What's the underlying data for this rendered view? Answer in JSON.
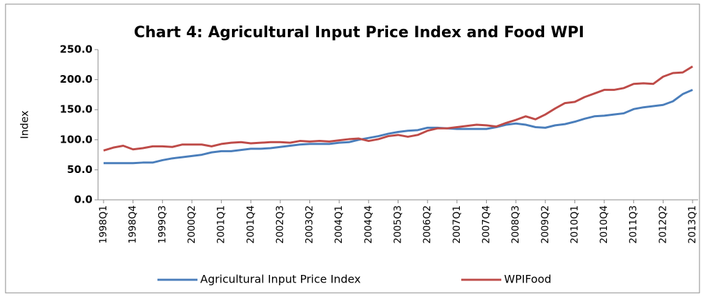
{
  "chart_data": {
    "type": "line",
    "title": "Chart 4: Agricultural Input Price Index and Food WPI",
    "y_label": "Index",
    "categories": [
      "1998Q1",
      null,
      null,
      "1998Q4",
      null,
      null,
      "1999Q3",
      null,
      null,
      "2000Q2",
      null,
      null,
      "2001Q1",
      null,
      null,
      "2001Q4",
      null,
      null,
      "2002Q3",
      null,
      null,
      "2003Q2",
      null,
      null,
      "2004Q1",
      null,
      null,
      "2004Q4",
      null,
      null,
      "2005Q3",
      null,
      null,
      "2006Q2",
      null,
      null,
      "2007Q1",
      null,
      null,
      "2007Q4",
      null,
      null,
      "2008Q3",
      null,
      null,
      "2009Q2",
      null,
      null,
      "2010Q1",
      null,
      null,
      "2010Q4",
      null,
      null,
      "2011Q3",
      null,
      null,
      "2012Q2",
      null,
      null,
      "2013Q1"
    ],
    "series": [
      {
        "name": "Agricultural Input Price Index",
        "color": "#4a7ebb",
        "values": [
          61,
          61,
          61,
          61,
          62,
          62,
          66,
          69,
          71,
          73,
          75,
          79,
          81,
          81,
          83,
          85,
          85,
          86,
          88,
          90,
          92,
          93,
          93,
          93,
          95,
          96,
          100,
          103,
          106,
          110,
          113,
          115,
          116,
          120,
          120,
          119,
          118,
          118,
          118,
          118,
          121,
          125,
          127,
          125,
          121,
          120,
          124,
          126,
          130,
          135,
          139,
          140,
          142,
          144,
          151,
          154,
          156,
          158,
          164,
          176,
          183
        ]
      },
      {
        "name": "WPIFood",
        "color": "#be4b48",
        "values": [
          82,
          87,
          90,
          84,
          86,
          89,
          89,
          88,
          92,
          92,
          92,
          89,
          93,
          95,
          96,
          94,
          95,
          96,
          96,
          95,
          98,
          97,
          98,
          97,
          99,
          101,
          102,
          98,
          101,
          106,
          108,
          105,
          108,
          115,
          119,
          119,
          121,
          123,
          125,
          124,
          122,
          128,
          133,
          139,
          134,
          142,
          152,
          161,
          163,
          171,
          177,
          183,
          183,
          186,
          193,
          194,
          193,
          205,
          211,
          212,
          222
        ]
      }
    ],
    "ylim": [
      0,
      250
    ],
    "yticks": [
      {
        "value": 0,
        "label": "0.0"
      },
      {
        "value": 50,
        "label": "50.0"
      },
      {
        "value": 100,
        "label": "100.0"
      },
      {
        "value": 150,
        "label": "150.0"
      },
      {
        "value": 200,
        "label": "200.0"
      },
      {
        "value": 250,
        "label": "250.0"
      }
    ],
    "legend": "bottom"
  }
}
